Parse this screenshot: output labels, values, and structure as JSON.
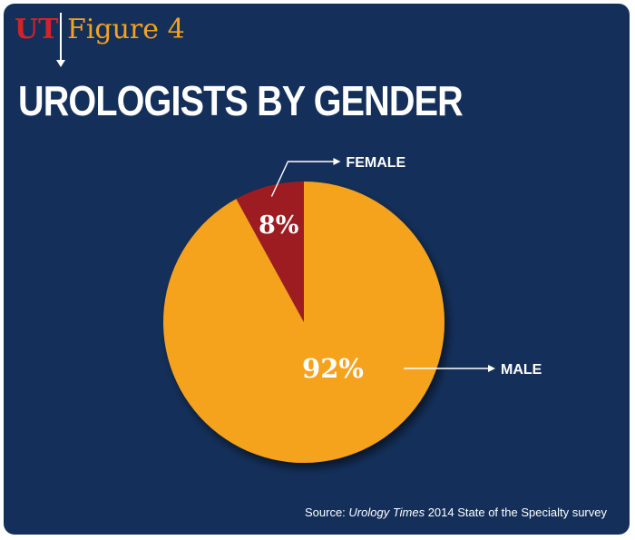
{
  "header": {
    "logo_text": "UT",
    "figure_label": "Figure 4",
    "title": "UROLOGISTS BY GENDER"
  },
  "source": {
    "prefix": "Source: ",
    "publication": "Urology Times",
    "suffix": " 2014 State of the Specialty survey"
  },
  "colors": {
    "background": "#14305a",
    "male": "#f5a21e",
    "female": "#9c1c22",
    "logo_red": "#d2232a"
  },
  "chart_data": {
    "type": "pie",
    "title": "UROLOGISTS BY GENDER",
    "slices": [
      {
        "label": "FEMALE",
        "value": 8,
        "value_label": "8%",
        "color": "#9c1c22"
      },
      {
        "label": "MALE",
        "value": 92,
        "value_label": "92%",
        "color": "#f5a21e"
      }
    ],
    "start": "12 o'clock, counter-clockwise for first slice"
  }
}
